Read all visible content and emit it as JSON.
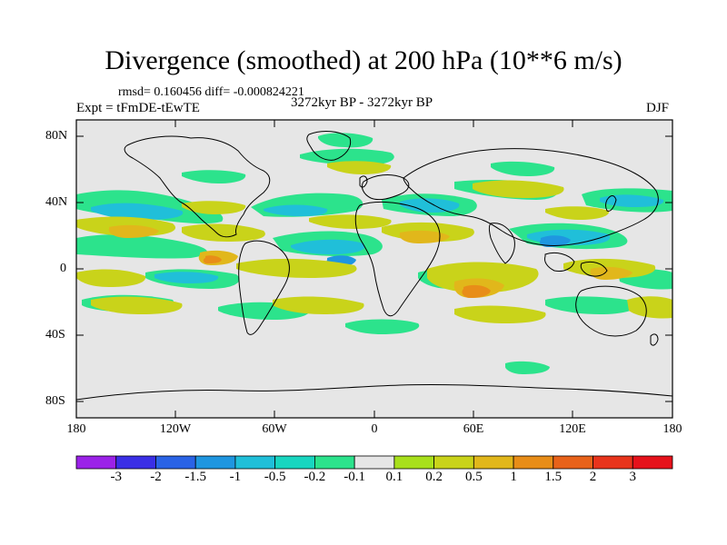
{
  "title": "Divergence (smoothed) at 200 hPa (10**6 m/s)",
  "stats": "rmsd= 0.160456 diff= -0.000824221",
  "experiment": "Expt = tFmDE-tEwTE",
  "period": "3272kyr BP - 3272kyr BP",
  "season": "DJF",
  "map": {
    "lat_ticks": [
      "80N",
      "40N",
      "0",
      "40S",
      "80S"
    ],
    "lon_ticks": [
      "180",
      "120W",
      "60W",
      "0",
      "60E",
      "120E",
      "180"
    ],
    "background": "#e6e6e6"
  },
  "colorbar": {
    "labels": [
      "-3",
      "-2",
      "-1.5",
      "-1",
      "-0.5",
      "-0.2",
      "-0.1",
      "0.1",
      "0.2",
      "0.5",
      "1",
      "1.5",
      "2",
      "3"
    ],
    "colors": [
      "#9b22e8",
      "#3a2fe6",
      "#2a63e6",
      "#1f96e0",
      "#20bfd9",
      "#18d6c0",
      "#2ce38c",
      "#e6e6e6",
      "#a8e01c",
      "#c9d31a",
      "#e1b71b",
      "#e88d18",
      "#e8621a",
      "#e8341c",
      "#e6121b"
    ]
  },
  "chart_data": {
    "type": "heatmap",
    "title": "Divergence (smoothed) at 200 hPa (10**6 m/s)",
    "variable": "divergence difference",
    "units": "10**6 m/s",
    "x_range": [
      -180,
      180
    ],
    "y_range": [
      -90,
      90
    ],
    "levels": [
      -3,
      -2,
      -1.5,
      -1,
      -0.5,
      -0.2,
      -0.1,
      0.1,
      0.2,
      0.5,
      1,
      1.5,
      2,
      3
    ]
  }
}
